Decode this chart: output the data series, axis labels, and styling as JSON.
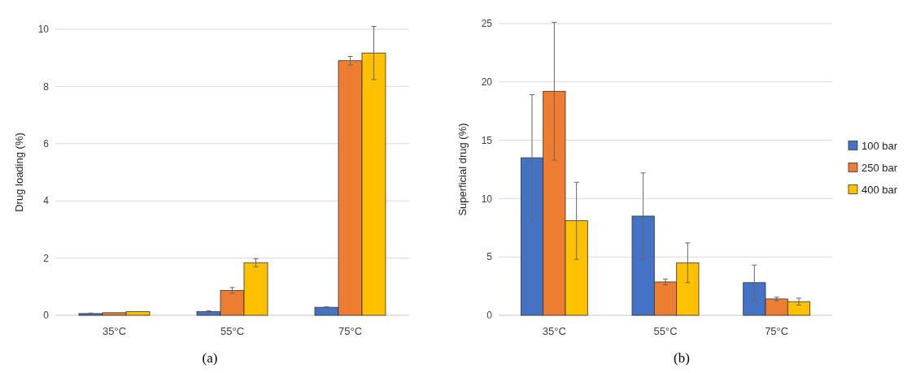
{
  "chart_data": [
    {
      "type": "bar",
      "ylabel": "Drug loading (%)",
      "categories": [
        "35°C",
        "55°C",
        "75°C"
      ],
      "ylim": [
        0,
        10
      ],
      "yticks": [
        0,
        2,
        4,
        6,
        8,
        10
      ],
      "grid": "y",
      "legend": false,
      "annotations": [
        "(a)"
      ],
      "series": [
        {
          "color": "#4472c4",
          "values": [
            0.06,
            0.13,
            0.28
          ],
          "errors": [
            0.02,
            0.03,
            0.02
          ]
        },
        {
          "color": "#ed7d31",
          "values": [
            0.09,
            0.87,
            8.9
          ],
          "errors": [
            null,
            0.1,
            0.15
          ]
        },
        {
          "color": "#ffc000",
          "values": [
            0.13,
            1.84,
            9.17
          ],
          "errors": [
            null,
            0.14,
            0.93
          ]
        }
      ]
    },
    {
      "type": "bar",
      "ylabel": "Superficial drug (%)",
      "categories": [
        "35°C",
        "55°C",
        "75°C"
      ],
      "ylim": [
        0,
        25
      ],
      "yticks": [
        0,
        5,
        10,
        15,
        20,
        25
      ],
      "grid": "y",
      "legend": "right",
      "annotations": [
        "(b)"
      ],
      "series": [
        {
          "name": "100 bar",
          "color": "#4472c4",
          "values": [
            13.5,
            8.5,
            2.8
          ],
          "errors": [
            5.4,
            3.7,
            1.5
          ]
        },
        {
          "name": "250 bar",
          "color": "#ed7d31",
          "values": [
            19.2,
            2.86,
            1.4
          ],
          "errors": [
            5.9,
            0.25,
            0.15
          ]
        },
        {
          "name": "400 bar",
          "color": "#ffc000",
          "values": [
            8.1,
            4.5,
            1.17
          ],
          "errors": [
            3.3,
            1.7,
            0.3
          ]
        }
      ]
    }
  ]
}
